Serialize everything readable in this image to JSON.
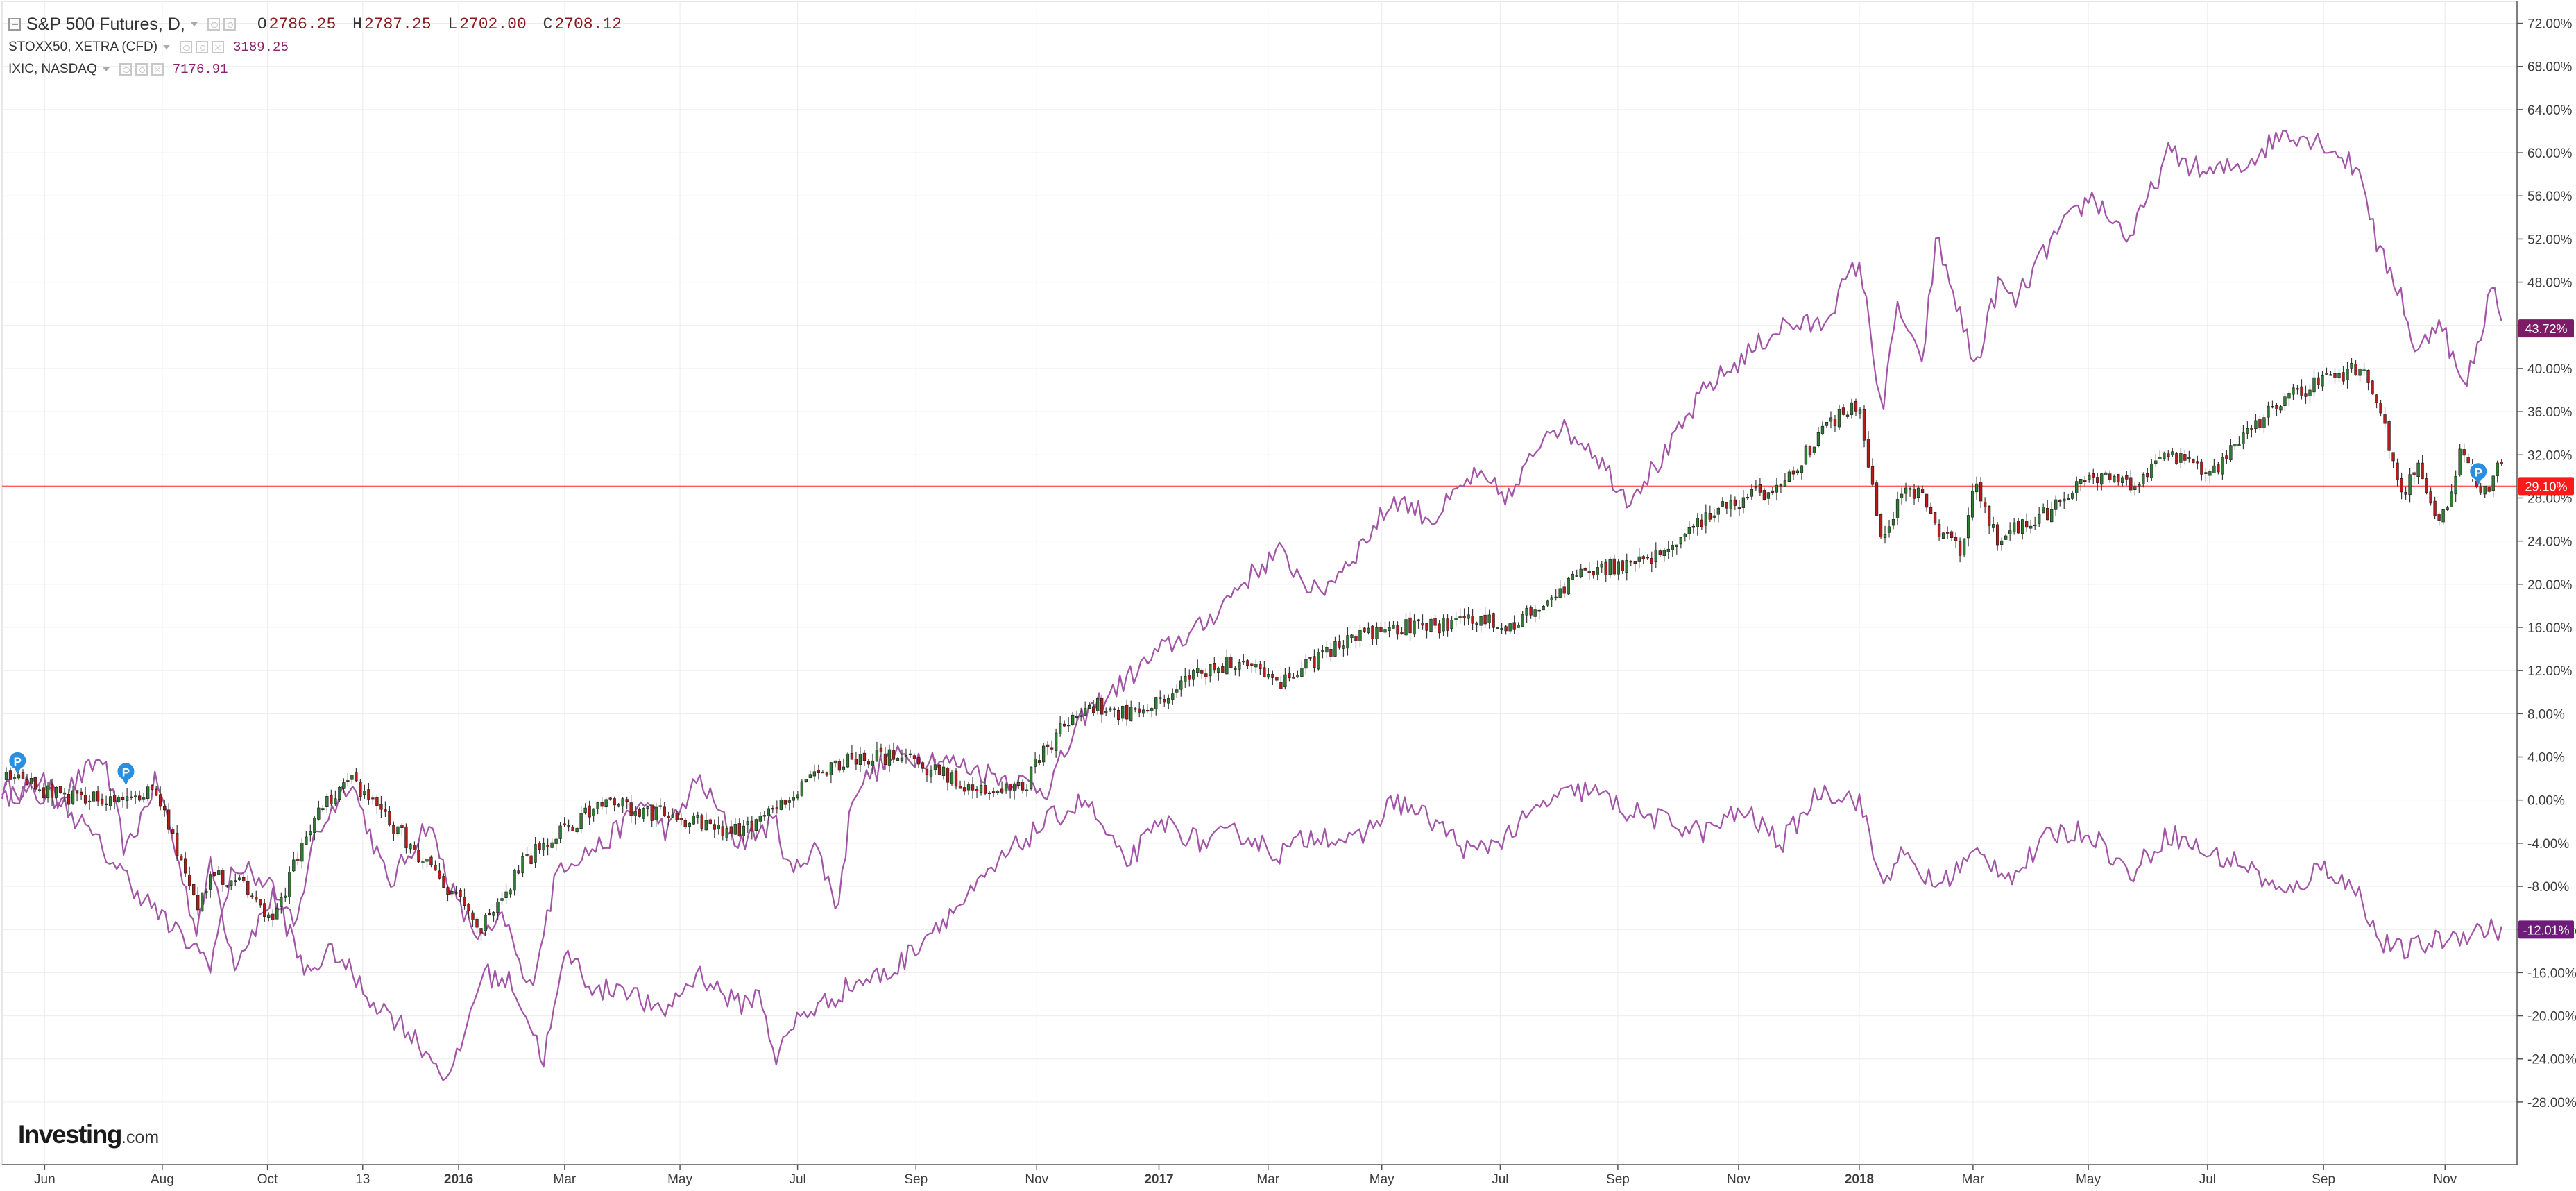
{
  "legend": {
    "main": {
      "title": "S&P 500 Futures, D,",
      "open_label": "O",
      "open": "2786.25",
      "high_label": "H",
      "high": "2787.25",
      "low_label": "L",
      "low": "2702.00",
      "close_label": "C",
      "close": "2708.12"
    },
    "stoxx": {
      "title": "STOXX50, XETRA (CFD)",
      "value": "3189.25"
    },
    "ixic": {
      "title": "IXIC, NASDAQ",
      "value": "7176.91"
    }
  },
  "logo": {
    "brand": "Investing",
    "suffix": ".com"
  },
  "colors": {
    "up": "#2f7d32",
    "down": "#b71c1c",
    "wick": "#3a3a3a",
    "ixic_line": "#a254a6",
    "stoxx_line": "#a254a6",
    "ixic_badge": "#7d1c66",
    "stoxx_badge": "#6d1d78",
    "spx_badge": "#ff1a1a",
    "price_line": "#ff5b5b",
    "grid": "#ececec",
    "axis": "#555555",
    "pin": "#2a8fdf"
  },
  "chart_data": {
    "type": "line",
    "title": "S&P 500 Futures, D,",
    "y_unit": "%",
    "ylim": [
      -30,
      73
    ],
    "y_ticks": [
      "72.00%",
      "68.00%",
      "64.00%",
      "60.00%",
      "56.00%",
      "52.00%",
      "48.00%",
      "44.00%",
      "40.00%",
      "36.00%",
      "32.00%",
      "28.00%",
      "24.00%",
      "20.00%",
      "16.00%",
      "12.00%",
      "8.00%",
      "4.00%",
      "0.00%",
      "-4.00%",
      "-8.00%",
      "-12.00%",
      "-16.00%",
      "-20.00%",
      "-24.00%",
      "-28.00%"
    ],
    "x_ticks": [
      "Jun",
      "Aug",
      "Oct",
      "13",
      "2016",
      "Mar",
      "May",
      "Jul",
      "Sep",
      "Nov",
      "2017",
      "Mar",
      "May",
      "Jul",
      "Sep",
      "Nov",
      "2018",
      "Mar",
      "May",
      "Jul",
      "Sep",
      "Nov"
    ],
    "x_ticks_bold": [
      "2016",
      "2017",
      "2018"
    ],
    "x_tick_pos": [
      0.055,
      0.207,
      0.343,
      0.466,
      0.59,
      0.727,
      0.876,
      1.028,
      1.181,
      1.337,
      1.495,
      1.636,
      1.783,
      1.936,
      2.088,
      2.244,
      2.4,
      2.547,
      2.696,
      2.85,
      3.0,
      3.157
    ],
    "x_range": [
      0,
      3.25
    ],
    "series": [
      {
        "name": "S&P 500 Futures",
        "style": "candlestick",
        "x": [
          0,
          0.1,
          0.2,
          0.25,
          0.27,
          0.31,
          0.35,
          0.4,
          0.45,
          0.5,
          0.55,
          0.59,
          0.62,
          0.67,
          0.72,
          0.78,
          0.83,
          0.9,
          0.95,
          0.98,
          1.0,
          1.05,
          1.1,
          1.15,
          1.2,
          1.25,
          1.3,
          1.32,
          1.35,
          1.4,
          1.45,
          1.5,
          1.55,
          1.6,
          1.65,
          1.7,
          1.75,
          1.8,
          1.85,
          1.9,
          1.95,
          2.0,
          2.05,
          2.1,
          2.15,
          2.2,
          2.25,
          2.3,
          2.35,
          2.4,
          2.42,
          2.43,
          2.45,
          2.48,
          2.5,
          2.53,
          2.55,
          2.58,
          2.6,
          2.65,
          2.7,
          2.75,
          2.8,
          2.85,
          2.9,
          2.95,
          3.0,
          3.05,
          3.07,
          3.1,
          3.12,
          3.15,
          3.18,
          3.2,
          3.23
        ],
        "values": [
          2,
          0,
          1,
          -10,
          -7,
          -8,
          -11,
          -2,
          2,
          -2,
          -6,
          -9,
          -12,
          -6,
          -3,
          0,
          -1,
          -2,
          -3,
          -2,
          -1,
          2,
          4,
          4,
          3,
          1,
          1,
          1,
          5,
          9,
          8,
          9,
          12,
          13,
          11,
          13,
          15,
          16,
          16,
          17,
          16,
          19,
          21,
          22,
          23,
          26,
          28,
          29,
          34,
          37,
          27,
          24,
          28,
          29,
          25,
          23,
          29,
          24,
          25,
          27,
          30,
          29,
          32,
          30,
          34,
          37,
          39,
          40,
          37,
          28,
          31,
          25,
          33,
          28,
          31
        ]
      },
      {
        "name": "IXIC, NASDAQ",
        "style": "line",
        "x": [
          0,
          0.07,
          0.13,
          0.16,
          0.2,
          0.25,
          0.27,
          0.3,
          0.35,
          0.38,
          0.4,
          0.45,
          0.5,
          0.55,
          0.59,
          0.62,
          0.65,
          0.68,
          0.72,
          0.78,
          0.83,
          0.86,
          0.9,
          0.95,
          1.0,
          1.02,
          1.05,
          1.08,
          1.1,
          1.15,
          1.2,
          1.25,
          1.3,
          1.35,
          1.4,
          1.45,
          1.5,
          1.55,
          1.6,
          1.65,
          1.7,
          1.75,
          1.8,
          1.85,
          1.9,
          1.95,
          2.0,
          2.05,
          2.1,
          2.15,
          2.2,
          2.25,
          2.3,
          2.35,
          2.4,
          2.43,
          2.45,
          2.48,
          2.5,
          2.53,
          2.55,
          2.58,
          2.6,
          2.65,
          2.7,
          2.75,
          2.8,
          2.85,
          2.9,
          2.95,
          3.0,
          3.05,
          3.07,
          3.1,
          3.12,
          3.15,
          3.18,
          3.2,
          3.22,
          3.23
        ],
        "values": [
          1,
          0,
          4,
          -5,
          2,
          -12,
          -6,
          -15,
          -9,
          -12,
          -4,
          2,
          -8,
          -2,
          -10,
          -13,
          -11,
          -18,
          -6,
          -4,
          0,
          -3,
          2,
          -4,
          -2,
          -7,
          -4,
          -10,
          1,
          4,
          4,
          3,
          2,
          1,
          8,
          11,
          14,
          16,
          20,
          23,
          19,
          23,
          28,
          26,
          30,
          28,
          35,
          33,
          28,
          32,
          38,
          41,
          44,
          44,
          50,
          36,
          46,
          40,
          52,
          45,
          40,
          48,
          46,
          52,
          56,
          52,
          60,
          58,
          59,
          62,
          61,
          58,
          51,
          47,
          41,
          45,
          38,
          42,
          49,
          44
        ]
      },
      {
        "name": "STOXX50, XETRA (CFD)",
        "style": "line",
        "x": [
          0,
          0.05,
          0.1,
          0.17,
          0.22,
          0.27,
          0.3,
          0.35,
          0.39,
          0.43,
          0.47,
          0.52,
          0.58,
          0.62,
          0.66,
          0.7,
          0.73,
          0.77,
          0.8,
          0.85,
          0.9,
          0.95,
          0.98,
          1.0,
          1.03,
          1.06,
          1.1,
          1.15,
          1.2,
          1.25,
          1.3,
          1.35,
          1.4,
          1.45,
          1.5,
          1.55,
          1.6,
          1.65,
          1.7,
          1.75,
          1.8,
          1.85,
          1.9,
          1.95,
          2.0,
          2.05,
          2.1,
          2.15,
          2.2,
          2.25,
          2.3,
          2.35,
          2.4,
          2.43,
          2.45,
          2.5,
          2.55,
          2.6,
          2.65,
          2.7,
          2.75,
          2.8,
          2.85,
          2.9,
          2.95,
          3.0,
          3.05,
          3.07,
          3.1,
          3.15,
          3.2,
          3.23
        ],
        "values": [
          0,
          2,
          -2,
          -8,
          -12,
          -15,
          -6,
          -8,
          -16,
          -14,
          -18,
          -21,
          -26,
          -16,
          -17,
          -24,
          -14,
          -18,
          -17,
          -20,
          -16,
          -19,
          -18,
          -24,
          -20,
          -19,
          -17,
          -16,
          -12,
          -9,
          -5,
          -2,
          0,
          -6,
          -2,
          -4,
          -3,
          -5,
          -3,
          -4,
          0,
          -2,
          -5,
          -3,
          0,
          1,
          -1,
          -2,
          -3,
          -1,
          -4,
          1,
          0,
          -8,
          -5,
          -8,
          -5,
          -7,
          -3,
          -3,
          -7,
          -3,
          -5,
          -6,
          -9,
          -6,
          -9,
          -13,
          -14,
          -13,
          -12,
          -12
        ]
      }
    ],
    "last_value_badges": [
      {
        "series": "IXIC, NASDAQ",
        "value": 43.72,
        "label": "43.72%"
      },
      {
        "series": "S&P 500 Futures",
        "value": 29.1,
        "label": "29.10%"
      },
      {
        "series": "STOXX50, XETRA (CFD)",
        "value": -12.01,
        "label": "-12.01%"
      }
    ],
    "price_line_value": 29.1,
    "pins": [
      {
        "x": 0.02,
        "value": 2.5,
        "label": "P"
      },
      {
        "x": 0.16,
        "value": 1.5,
        "label": "P"
      },
      {
        "x": 3.2,
        "value": 29.3,
        "label": "P"
      }
    ],
    "grid": true,
    "legend_position": "top-left"
  }
}
